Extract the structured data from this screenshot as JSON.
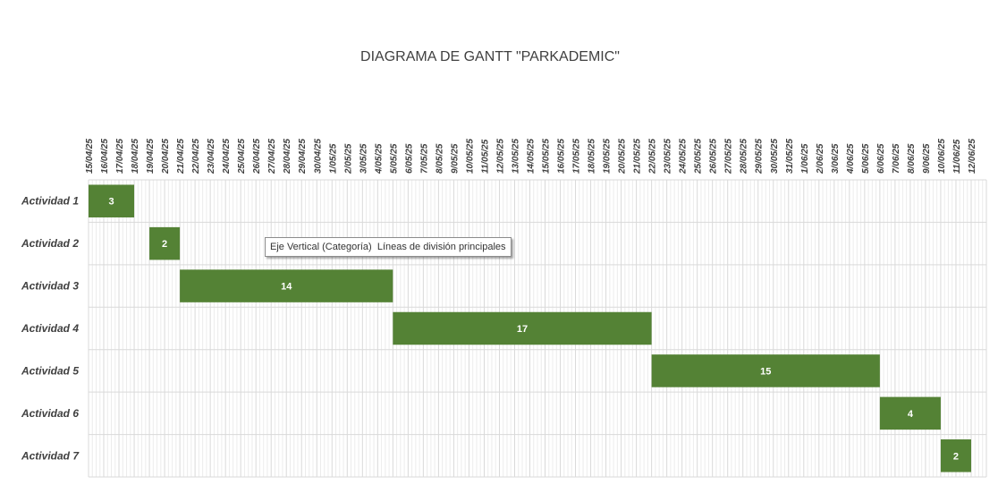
{
  "chart_data": {
    "type": "bar",
    "orientation": "horizontal-gantt",
    "title": "DIAGRAMA DE GANTT \"PARKADEMIC\"",
    "x_ticks": [
      "15/04/25",
      "16/04/25",
      "17/04/25",
      "18/04/25",
      "19/04/25",
      "20/04/25",
      "21/04/25",
      "22/04/25",
      "23/04/25",
      "24/04/25",
      "25/04/25",
      "26/04/25",
      "27/04/25",
      "28/04/25",
      "29/04/25",
      "30/04/25",
      "1/05/25",
      "2/05/25",
      "3/05/25",
      "4/05/25",
      "5/05/25",
      "6/05/25",
      "7/05/25",
      "8/05/25",
      "9/05/25",
      "10/05/25",
      "11/05/25",
      "12/05/25",
      "13/05/25",
      "14/05/25",
      "15/05/25",
      "16/05/25",
      "17/05/25",
      "18/05/25",
      "19/05/25",
      "20/05/25",
      "21/05/25",
      "22/05/25",
      "23/05/25",
      "24/05/25",
      "25/05/25",
      "26/05/25",
      "27/05/25",
      "28/05/25",
      "29/05/25",
      "30/05/25",
      "31/05/25",
      "1/06/25",
      "2/06/25",
      "3/06/25",
      "4/06/25",
      "5/06/25",
      "6/06/25",
      "7/06/25",
      "8/06/25",
      "9/06/25",
      "10/06/25",
      "11/06/25",
      "12/06/25"
    ],
    "x_range": [
      "15/04/25",
      "13/06/25"
    ],
    "tasks": [
      {
        "name": "Actividad 1",
        "start": "15/04/25",
        "duration": 3
      },
      {
        "name": "Actividad 2",
        "start": "19/04/25",
        "duration": 2
      },
      {
        "name": "Actividad 3",
        "start": "21/04/25",
        "duration": 14
      },
      {
        "name": "Actividad 4",
        "start": "5/05/25",
        "duration": 17
      },
      {
        "name": "Actividad 5",
        "start": "22/05/25",
        "duration": 15
      },
      {
        "name": "Actividad 6",
        "start": "6/06/25",
        "duration": 4
      },
      {
        "name": "Actividad 7",
        "start": "10/06/25",
        "duration": 2
      }
    ],
    "bar_color": "#548235",
    "grid_color": "#d9d9d9",
    "grid": true,
    "legend": "none"
  },
  "tooltip": {
    "text": "Eje Vertical (Categoría)  Líneas de división principales"
  }
}
